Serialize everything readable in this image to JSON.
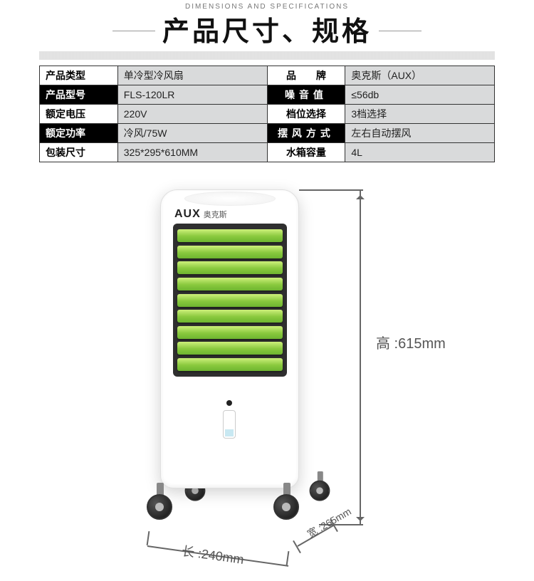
{
  "header": {
    "subtitle": "DIMENSIONS AND SPECIFICATIONS",
    "title": "产品尺寸、规格"
  },
  "spec_table": {
    "rows": [
      {
        "l1": "产品类型",
        "v1": "单冷型冷风扇",
        "l2": "品　　牌",
        "v2": "奥克斯（AUX）",
        "dark": false
      },
      {
        "l1": "产品型号",
        "v1": "FLS-120LR",
        "l2": "噪音值",
        "v2": "≤56db",
        "dark": true
      },
      {
        "l1": "额定电压",
        "v1": "220V",
        "l2": "档位选择",
        "v2": "3档选择",
        "dark": false
      },
      {
        "l1": "额定功率",
        "v1": "冷风/75W",
        "l2": "摆风方式",
        "v2": "左右自动摆风",
        "dark": true
      },
      {
        "l1": "包装尺寸",
        "v1": "325*295*610MM",
        "l2": "水箱容量",
        "v2": "4L",
        "dark": false
      }
    ]
  },
  "brand": {
    "logo": "AUX",
    "cn": "奥克斯"
  },
  "dimensions": {
    "height_label": "高 :615mm",
    "length_label": "长 :240mm",
    "width_label": "宽 :265mm"
  },
  "colors": {
    "louver": "#89c93e",
    "dark_cell": "#000000",
    "grey_cell": "#d9dadb"
  }
}
